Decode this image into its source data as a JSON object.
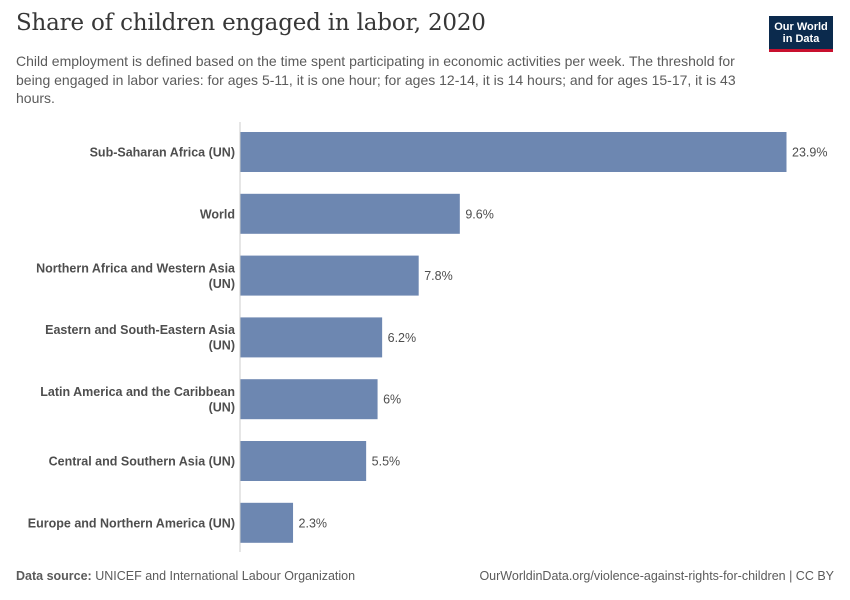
{
  "header": {
    "title": "Share of children engaged in labor, 2020",
    "subtitle": "Child employment is defined based on the time spent participating in economic activities per week. The threshold for being engaged in labor varies: for ages 5-11, it is one hour; for ages 12-14, it is 14 hours; and for ages 15-17, it is 43 hours.",
    "logo_line1": "Our World",
    "logo_line2": "in Data"
  },
  "footer": {
    "source_label": "Data source:",
    "source_text": " UNICEF and International Labour Organization",
    "url": "OurWorldinData.org/violence-against-rights-for-children | CC BY"
  },
  "colors": {
    "bar": "#6d87b1",
    "label": "#4e4e4e",
    "value": "#4e4e4e",
    "axis": "#cccccc"
  },
  "chart_data": {
    "type": "bar",
    "orientation": "horizontal",
    "title": "Share of children engaged in labor, 2020",
    "unit": "%",
    "xlim": [
      0,
      23.9
    ],
    "categories": [
      [
        "Sub-Saharan Africa (UN)"
      ],
      [
        "World"
      ],
      [
        "Northern Africa and Western Asia",
        "(UN)"
      ],
      [
        "Eastern and South-Eastern Asia",
        "(UN)"
      ],
      [
        "Latin America and the Caribbean",
        "(UN)"
      ],
      [
        "Central and Southern Asia (UN)"
      ],
      [
        "Europe and Northern America (UN)"
      ]
    ],
    "values": [
      23.9,
      9.6,
      7.8,
      6.2,
      6,
      5.5,
      2.3
    ],
    "value_labels": [
      "23.9%",
      "9.6%",
      "7.8%",
      "6.2%",
      "6%",
      "5.5%",
      "2.3%"
    ]
  }
}
